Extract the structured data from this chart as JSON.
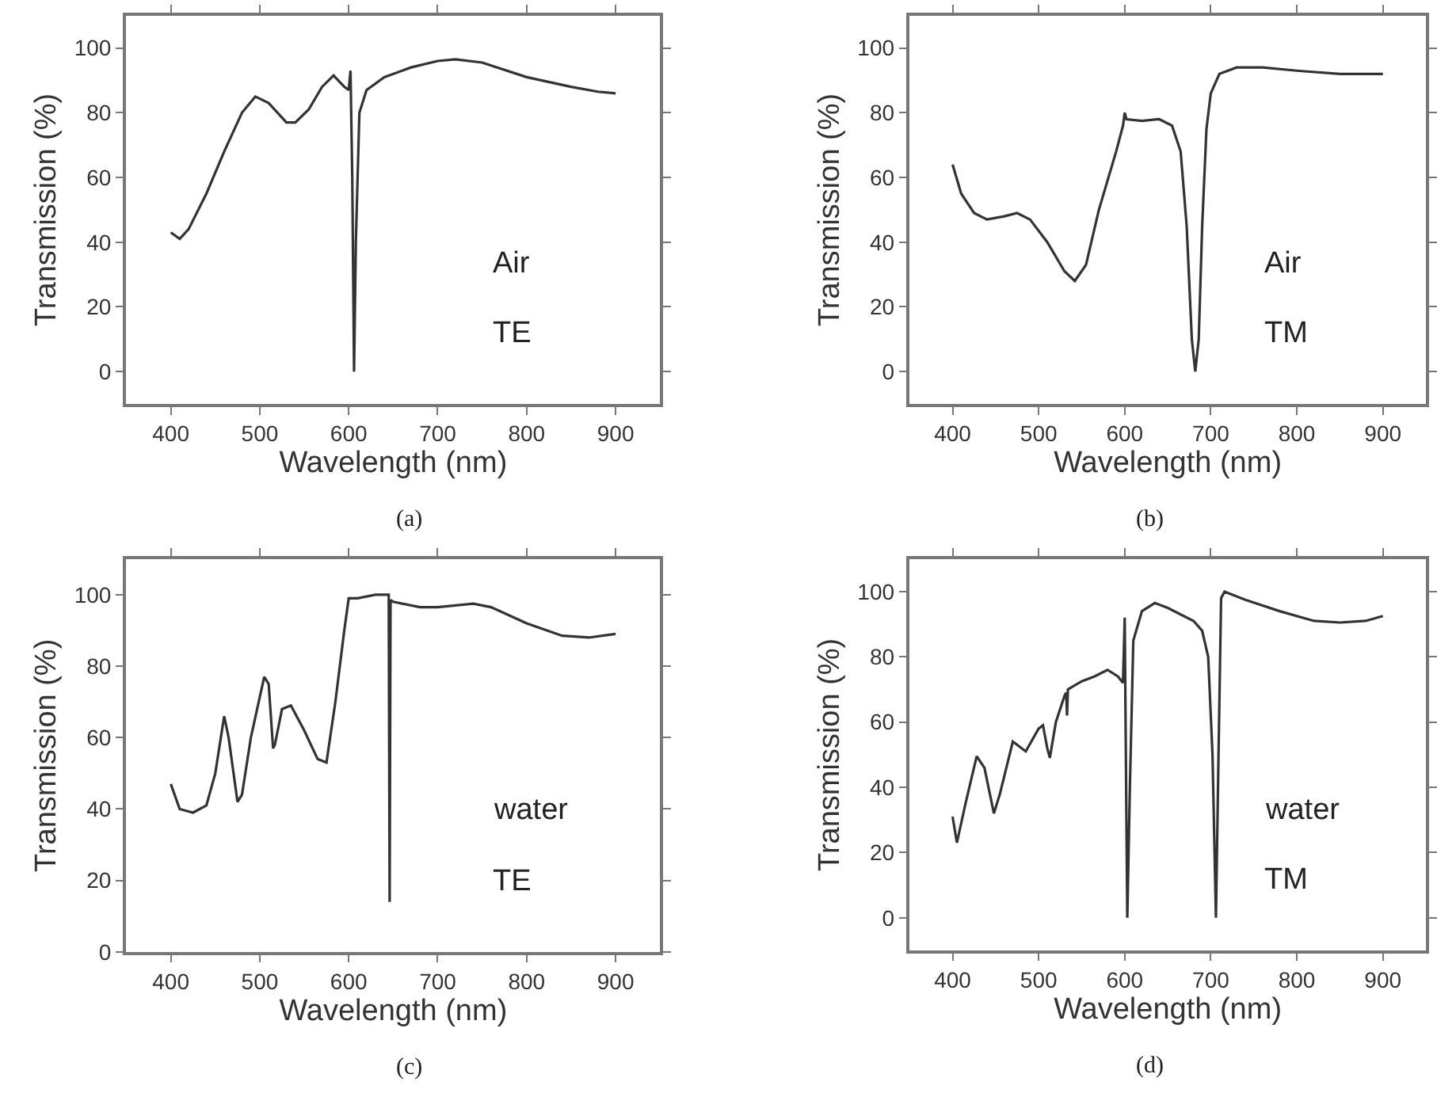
{
  "chart_data": [
    {
      "type": "line",
      "title": "(a)",
      "xlabel": "Wavelength (nm)",
      "ylabel": "Transmission (%)",
      "annotations": [
        "Air",
        "TE"
      ],
      "color": "#333333",
      "xlim": [
        350,
        950
      ],
      "ylim": [
        -10,
        110
      ],
      "xticks": [
        400,
        500,
        600,
        700,
        800,
        900
      ],
      "yticks": [
        0,
        20,
        40,
        60,
        80,
        100
      ],
      "x": [
        400,
        410,
        420,
        440,
        460,
        480,
        495,
        510,
        530,
        540,
        555,
        570,
        583,
        595,
        600,
        602,
        604,
        606,
        608,
        612,
        620,
        640,
        670,
        700,
        720,
        750,
        800,
        850,
        880,
        900
      ],
      "values": [
        43,
        41,
        44,
        55,
        68,
        80,
        85,
        83,
        77,
        77,
        81,
        88,
        91.5,
        88,
        87,
        93,
        60,
        0,
        40,
        80,
        87,
        91,
        94,
        96,
        96.5,
        95.5,
        91,
        88,
        86.5,
        86
      ]
    },
    {
      "type": "line",
      "title": "(b)",
      "xlabel": "Wavelength (nm)",
      "ylabel": "Transmission (%)",
      "annotations": [
        "Air",
        "TM"
      ],
      "color": "#333333",
      "xlim": [
        350,
        950
      ],
      "ylim": [
        -10,
        110
      ],
      "xticks": [
        400,
        500,
        600,
        700,
        800,
        900
      ],
      "yticks": [
        0,
        20,
        40,
        60,
        80,
        100
      ],
      "x": [
        400,
        410,
        425,
        440,
        460,
        475,
        490,
        510,
        530,
        542,
        555,
        570,
        590,
        598,
        600,
        602,
        620,
        640,
        655,
        665,
        672,
        678,
        682,
        686,
        690,
        695,
        700,
        710,
        730,
        760,
        800,
        850,
        900
      ],
      "values": [
        64,
        55,
        49,
        47,
        48,
        49,
        47,
        40,
        31,
        28,
        33,
        50,
        68,
        76,
        80,
        78,
        77.5,
        78,
        76,
        68,
        45,
        10,
        0,
        10,
        45,
        75,
        86,
        92,
        94,
        94,
        93,
        92,
        92
      ]
    },
    {
      "type": "line",
      "title": "(c)",
      "xlabel": "Wavelength (nm)",
      "ylabel": "Transmission (%)",
      "annotations": [
        "water",
        "TE"
      ],
      "color": "#333333",
      "xlim": [
        350,
        950
      ],
      "ylim": [
        0,
        110
      ],
      "xticks": [
        400,
        500,
        600,
        700,
        800,
        900
      ],
      "yticks": [
        0,
        20,
        40,
        60,
        80,
        100
      ],
      "x": [
        400,
        410,
        425,
        440,
        450,
        460,
        465,
        475,
        480,
        490,
        505,
        510,
        515,
        517,
        525,
        535,
        550,
        565,
        575,
        585,
        595,
        600,
        610,
        630,
        645,
        646,
        647,
        650,
        680,
        700,
        740,
        760,
        800,
        840,
        870,
        900
      ],
      "values": [
        47,
        40,
        39,
        41,
        50,
        66,
        60,
        42,
        44,
        60,
        77,
        75,
        57,
        58,
        68,
        69,
        62,
        54,
        53,
        70,
        90,
        99,
        99,
        100,
        100,
        14,
        98.5,
        98,
        96.5,
        96.5,
        97.5,
        96.5,
        92,
        88.5,
        88,
        89
      ]
    },
    {
      "type": "line",
      "title": "(d)",
      "xlabel": "Wavelength (nm)",
      "ylabel": "Transmission (%)",
      "annotations": [
        "water",
        "TM"
      ],
      "color": "#333333",
      "xlim": [
        350,
        950
      ],
      "ylim": [
        -10,
        110
      ],
      "xticks": [
        400,
        500,
        600,
        700,
        800,
        900
      ],
      "yticks": [
        0,
        20,
        40,
        60,
        80,
        100
      ],
      "x": [
        400,
        405,
        415,
        428,
        437,
        448,
        455,
        470,
        485,
        500,
        505,
        510,
        513,
        520,
        530,
        532,
        533,
        534,
        550,
        565,
        580,
        592,
        598,
        600,
        601,
        603,
        606,
        610,
        620,
        635,
        650,
        680,
        690,
        697,
        702,
        706,
        709,
        712,
        716,
        740,
        780,
        820,
        850,
        880,
        900
      ],
      "values": [
        31,
        23,
        35,
        49.5,
        46,
        32,
        38,
        54,
        51,
        58,
        59,
        52,
        49,
        60,
        68,
        69,
        62,
        70,
        72.5,
        74,
        76,
        74,
        72,
        92,
        60,
        0,
        40,
        85,
        94,
        96.5,
        95,
        91,
        88,
        80,
        50,
        0,
        50,
        98,
        100,
        97.5,
        94,
        91,
        90.5,
        91,
        92.5
      ]
    }
  ]
}
